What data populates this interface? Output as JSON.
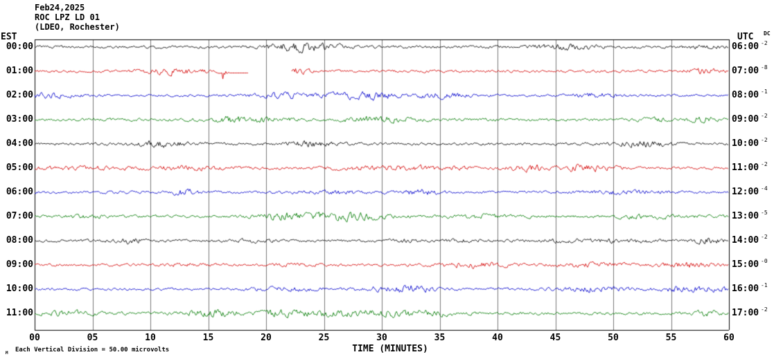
{
  "header": {
    "date": "Feb24,2025",
    "station": "ROC LPZ LD 01",
    "location": "(LDEO, Rochester)"
  },
  "axis": {
    "left_tz": "EST",
    "right_tz": "UTC",
    "dc_header": "DC",
    "x_title": "TIME (MINUTES)",
    "x_ticks": [
      "00",
      "05",
      "10",
      "15",
      "20",
      "25",
      "30",
      "35",
      "40",
      "45",
      "50",
      "55",
      "60"
    ],
    "scale_prefix": "M",
    "scale_note": "Each Vertical Division =   50.00 microvolts"
  },
  "chart_data": {
    "type": "line",
    "title": "ROC LPZ LD 01 helicorder, Feb24,2025 (LDEO, Rochester)",
    "x_unit": "minutes",
    "x_range": [
      0,
      60
    ],
    "x_tick_interval": 5,
    "vertical_division_microvolts": 50.0,
    "rows": [
      {
        "est": "00:00",
        "utc": "06:00",
        "dc": "-2",
        "color": "#000000",
        "amp": 1.6,
        "seed": 101
      },
      {
        "est": "01:00",
        "utc": "07:00",
        "dc": "-8",
        "color": "#d40000",
        "amp": 1.5,
        "seed": 202,
        "events": {
          "spike": 16.4,
          "flat": [
            16.8,
            18.5
          ],
          "gap": [
            18.5,
            22.2
          ]
        }
      },
      {
        "est": "02:00",
        "utc": "08:00",
        "dc": "-1",
        "color": "#0000cc",
        "amp": 1.4,
        "seed": 303
      },
      {
        "est": "03:00",
        "utc": "09:00",
        "dc": "-2",
        "color": "#007a00",
        "amp": 1.6,
        "seed": 404
      },
      {
        "est": "04:00",
        "utc": "10:00",
        "dc": "-2",
        "color": "#000000",
        "amp": 1.5,
        "seed": 505
      },
      {
        "est": "05:00",
        "utc": "11:00",
        "dc": "-2",
        "color": "#d40000",
        "amp": 1.6,
        "seed": 606
      },
      {
        "est": "06:00",
        "utc": "12:00",
        "dc": "-4",
        "color": "#0000cc",
        "amp": 1.5,
        "seed": 707
      },
      {
        "est": "07:00",
        "utc": "13:00",
        "dc": "-5",
        "color": "#007a00",
        "amp": 1.5,
        "seed": 808
      },
      {
        "est": "08:00",
        "utc": "14:00",
        "dc": "-2",
        "color": "#000000",
        "amp": 1.5,
        "seed": 909
      },
      {
        "est": "09:00",
        "utc": "15:00",
        "dc": "-0",
        "color": "#d40000",
        "amp": 1.4,
        "seed": 1010
      },
      {
        "est": "10:00",
        "utc": "16:00",
        "dc": "-1",
        "color": "#0000cc",
        "amp": 1.4,
        "seed": 1111
      },
      {
        "est": "11:00",
        "utc": "17:00",
        "dc": "-2",
        "color": "#007a00",
        "amp": 1.6,
        "seed": 1212
      }
    ]
  }
}
